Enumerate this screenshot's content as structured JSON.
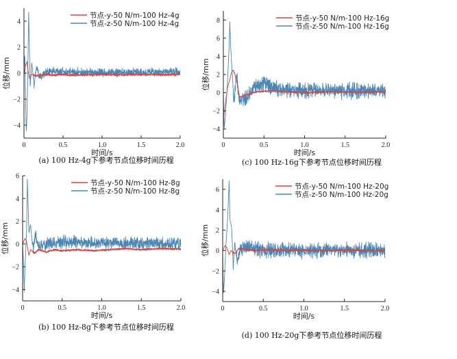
{
  "colors": {
    "series_y": "#d64541",
    "series_z": "#4b86b4",
    "axis": "#222222"
  },
  "chart_data": [
    {
      "type": "line",
      "id": "a",
      "caption": "(a) 100 Hz-4g下参考节点位移时间历程",
      "xlabel": "时间/s",
      "ylabel": "位移/mm",
      "xlim": [
        0,
        2.0
      ],
      "ylim": [
        -5,
        5
      ],
      "xticks": [
        0,
        0.5,
        1.0,
        1.5,
        2.0
      ],
      "xtick_labels": [
        "0",
        "0.5",
        "1.0",
        "1.5",
        "2.0"
      ],
      "yticks": [
        -4,
        -2,
        0,
        2,
        4
      ],
      "ytick_labels": [
        "−4",
        "−2",
        "0",
        "2",
        "4"
      ],
      "legend_position": "top-right",
      "series": [
        {
          "name": "节点-y-50 N/m-100 Hz-4g",
          "color_key": "series_y",
          "x": [
            0,
            0.02,
            0.04,
            0.05,
            0.07,
            0.1,
            0.15,
            0.2,
            0.3,
            0.4,
            0.5,
            0.6,
            0.8,
            1.0,
            1.2,
            1.4,
            1.6,
            1.8,
            2.0
          ],
          "values": [
            0,
            0.6,
            0.9,
            0.3,
            -0.4,
            -0.1,
            -0.2,
            -0.15,
            -0.1,
            -0.15,
            -0.1,
            -0.15,
            -0.12,
            -0.1,
            -0.12,
            -0.1,
            -0.1,
            -0.12,
            -0.1
          ]
        },
        {
          "name": "节点-z-50 N/m-100 Hz-4g",
          "color_key": "series_z",
          "x": [
            0,
            0.01,
            0.02,
            0.03,
            0.04,
            0.05,
            0.06,
            0.08,
            0.1,
            0.13,
            0.16,
            0.2,
            0.3,
            0.5,
            1.0,
            1.5,
            2.0
          ],
          "values": [
            0,
            1.5,
            -2,
            -4.6,
            -3,
            0.5,
            4.7,
            -1,
            0.8,
            -1,
            0.5,
            -0.3,
            0.2,
            0.1,
            0.05,
            0.05,
            0.1
          ]
        }
      ]
    },
    {
      "type": "line",
      "id": "c",
      "caption": "(c) 100 Hz-16g下参考节点位移时间历程",
      "xlabel": "时间/s",
      "ylabel": "位移/mm",
      "xlim": [
        0,
        2.0
      ],
      "ylim": [
        -5,
        9
      ],
      "xticks": [
        0,
        0.5,
        1.0,
        1.5,
        2.0
      ],
      "xtick_labels": [
        "0",
        "0.5",
        "1.0",
        "1.5",
        "2.0"
      ],
      "yticks": [
        -4,
        -2,
        0,
        2,
        4,
        6,
        8
      ],
      "ytick_labels": [
        "−4",
        "−2",
        "0",
        "2",
        "4",
        "6",
        "8"
      ],
      "legend_position": "top-right",
      "series": [
        {
          "name": "节点-y-50 N/m-100 Hz-16g",
          "color_key": "series_y",
          "x": [
            0,
            0.02,
            0.05,
            0.08,
            0.1,
            0.12,
            0.14,
            0.17,
            0.2,
            0.25,
            0.3,
            0.4,
            0.6,
            0.8,
            1.0,
            1.3,
            1.6,
            2.0
          ],
          "values": [
            -3,
            -1.5,
            0.5,
            1.5,
            2.2,
            2.5,
            2.1,
            1.0,
            -0.5,
            -0.3,
            -0.2,
            0.1,
            0.2,
            0.1,
            0,
            0.1,
            0.05,
            0.1
          ]
        },
        {
          "name": "节点-z-50 N/m-100 Hz-16g",
          "color_key": "series_z",
          "x": [
            0,
            0.01,
            0.03,
            0.05,
            0.07,
            0.08,
            0.09,
            0.11,
            0.13,
            0.16,
            0.2,
            0.3,
            0.4,
            0.5,
            0.6,
            0.8,
            1.0,
            1.2,
            1.5,
            2.0
          ],
          "values": [
            0,
            -4,
            -2,
            1,
            5,
            7.8,
            5,
            2,
            -1,
            2,
            -1,
            -0.3,
            0.5,
            1.0,
            0.6,
            0.3,
            0.2,
            0.3,
            0.2,
            0.2
          ]
        }
      ]
    },
    {
      "type": "line",
      "id": "b",
      "caption": "(b) 100 Hz-8g下参考节点位移时间历程",
      "xlabel": "时间/s",
      "ylabel": "位移/mm",
      "xlim": [
        0,
        2.0
      ],
      "ylim": [
        -5,
        6
      ],
      "xticks": [
        0,
        0.5,
        1.0,
        1.5,
        2.0
      ],
      "xtick_labels": [
        "0",
        "0.5",
        "1.0",
        "1.5",
        "2.0"
      ],
      "yticks": [
        -4,
        -2,
        0,
        2,
        4,
        6
      ],
      "ytick_labels": [
        "−4",
        "−2",
        "0",
        "2",
        "4",
        "6"
      ],
      "legend_position": "top-right",
      "series": [
        {
          "name": "节点-y-50 N/m-100 Hz-8g",
          "color_key": "series_y",
          "x": [
            0,
            0.03,
            0.05,
            0.08,
            0.1,
            0.15,
            0.2,
            0.3,
            0.4,
            0.5,
            0.7,
            0.9,
            1.1,
            1.3,
            1.5,
            1.7,
            2.0
          ],
          "values": [
            0,
            0.5,
            0.2,
            -1.0,
            -0.5,
            -0.8,
            -0.5,
            -0.7,
            -0.5,
            -0.6,
            -0.5,
            -0.6,
            -0.5,
            -0.4,
            -0.5,
            -0.4,
            -0.45
          ]
        },
        {
          "name": "节点-z-50 N/m-100 Hz-8g",
          "color_key": "series_z",
          "x": [
            0,
            0.01,
            0.02,
            0.03,
            0.05,
            0.06,
            0.08,
            0.1,
            0.13,
            0.16,
            0.2,
            0.3,
            0.5,
            0.8,
            1.0,
            1.5,
            2.0
          ],
          "values": [
            0,
            -1.5,
            -4.2,
            -2,
            1,
            5.7,
            1,
            1.7,
            -0.5,
            0.8,
            -0.3,
            0,
            0.2,
            0.1,
            0.1,
            0.05,
            0.05
          ]
        }
      ]
    },
    {
      "type": "line",
      "id": "d",
      "caption": "(d) 100 Hz-20g下参考节点位移时间历程",
      "xlabel": "时间/s",
      "ylabel": "位移/mm",
      "xlim": [
        0,
        2.0
      ],
      "ylim": [
        -5,
        7
      ],
      "xticks": [
        0,
        0.5,
        1.0,
        1.5,
        2.0
      ],
      "xtick_labels": [
        "0",
        "0.5",
        "1.0",
        "1.5",
        "2.0"
      ],
      "yticks": [
        -4,
        -2,
        0,
        2,
        4,
        6
      ],
      "ytick_labels": [
        "−4",
        "−2",
        "0",
        "2",
        "4",
        "6"
      ],
      "legend_position": "top-right",
      "series": [
        {
          "name": "节点-y-50 N/m-100 Hz-20g",
          "color_key": "series_y",
          "x": [
            0,
            0.03,
            0.05,
            0.08,
            0.1,
            0.15,
            0.2,
            0.3,
            0.4,
            0.6,
            0.8,
            1.0,
            1.2,
            1.5,
            1.8,
            2.0
          ],
          "values": [
            0,
            0.5,
            0.3,
            -0.4,
            0,
            -0.3,
            0.2,
            0.1,
            0,
            0.1,
            0,
            0.05,
            0,
            0.05,
            0,
            0
          ]
        },
        {
          "name": "节点-z-50 N/m-100 Hz-20g",
          "color_key": "series_z",
          "x": [
            0,
            0.01,
            0.02,
            0.04,
            0.06,
            0.08,
            0.09,
            0.11,
            0.13,
            0.15,
            0.18,
            0.22,
            0.3,
            0.5,
            0.8,
            1.0,
            1.5,
            2.0
          ],
          "values": [
            0,
            -4.3,
            -3,
            0.5,
            3,
            6.8,
            3,
            2.3,
            -1.5,
            0.8,
            -1.2,
            0.2,
            0.3,
            0.1,
            0.05,
            0,
            0.05,
            0
          ]
        }
      ]
    }
  ]
}
